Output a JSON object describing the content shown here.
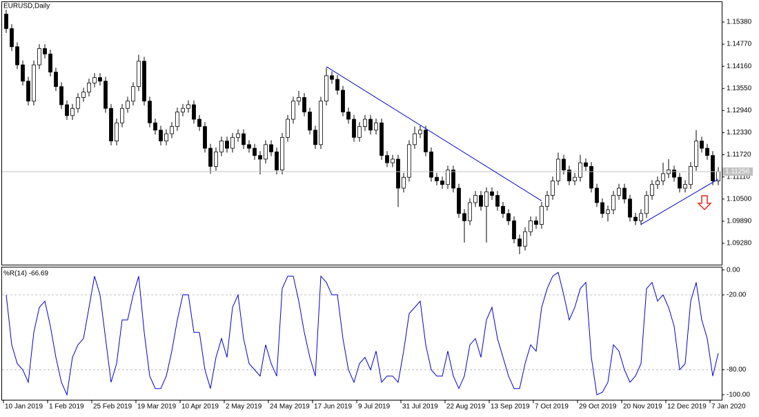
{
  "chart_data": [
    {
      "type": "candlestick",
      "title": "EURUSD,Daily",
      "color_up": "#ffffff",
      "color_down": "#000000",
      "ohlc": [
        [
          1.156,
          1.1572,
          1.1508,
          1.152
        ],
        [
          1.152,
          1.1532,
          1.1458,
          1.147
        ],
        [
          1.147,
          1.1482,
          1.1408,
          1.142
        ],
        [
          1.142,
          1.1432,
          1.1363,
          1.1375
        ],
        [
          1.1375,
          1.1387,
          1.1308,
          1.132
        ],
        [
          1.132,
          1.1432,
          1.1308,
          1.142
        ],
        [
          1.142,
          1.1477,
          1.1408,
          1.1465
        ],
        [
          1.1465,
          1.1477,
          1.1438,
          1.145
        ],
        [
          1.145,
          1.1462,
          1.1388,
          1.14
        ],
        [
          1.14,
          1.1412,
          1.1348,
          1.136
        ],
        [
          1.136,
          1.1372,
          1.1298,
          1.131
        ],
        [
          1.131,
          1.1322,
          1.1268,
          1.128
        ],
        [
          1.128,
          1.1312,
          1.1268,
          1.13
        ],
        [
          1.13,
          1.1342,
          1.1288,
          1.133
        ],
        [
          1.133,
          1.1357,
          1.1318,
          1.1345
        ],
        [
          1.1345,
          1.1382,
          1.1333,
          1.137
        ],
        [
          1.137,
          1.1397,
          1.1358,
          1.1385
        ],
        [
          1.1385,
          1.1397,
          1.1363,
          1.1375
        ],
        [
          1.1375,
          1.1387,
          1.1288,
          1.13
        ],
        [
          1.13,
          1.1312,
          1.1198,
          1.121
        ],
        [
          1.121,
          1.1272,
          1.1198,
          1.126
        ],
        [
          1.126,
          1.1312,
          1.1248,
          1.13
        ],
        [
          1.13,
          1.1332,
          1.1288,
          1.132
        ],
        [
          1.132,
          1.1372,
          1.1308,
          1.136
        ],
        [
          1.136,
          1.1448,
          1.1348,
          1.143
        ],
        [
          1.143,
          1.1442,
          1.1308,
          1.132
        ],
        [
          1.132,
          1.1332,
          1.1248,
          1.126
        ],
        [
          1.126,
          1.1272,
          1.1228,
          1.124
        ],
        [
          1.124,
          1.1252,
          1.1198,
          1.121
        ],
        [
          1.121,
          1.1242,
          1.1198,
          1.123
        ],
        [
          1.123,
          1.1262,
          1.1218,
          1.125
        ],
        [
          1.125,
          1.1302,
          1.1238,
          1.129
        ],
        [
          1.129,
          1.1312,
          1.1278,
          1.13
        ],
        [
          1.13,
          1.1322,
          1.1288,
          1.131
        ],
        [
          1.131,
          1.1322,
          1.1258,
          1.127
        ],
        [
          1.127,
          1.1282,
          1.1238,
          1.125
        ],
        [
          1.125,
          1.1262,
          1.1178,
          1.119
        ],
        [
          1.119,
          1.1202,
          1.112,
          1.114
        ],
        [
          1.114,
          1.1192,
          1.1128,
          1.118
        ],
        [
          1.118,
          1.1222,
          1.1168,
          1.121
        ],
        [
          1.121,
          1.1222,
          1.1178,
          1.119
        ],
        [
          1.119,
          1.1232,
          1.1178,
          1.122
        ],
        [
          1.122,
          1.1242,
          1.1208,
          1.123
        ],
        [
          1.123,
          1.1242,
          1.1188,
          1.12
        ],
        [
          1.12,
          1.1212,
          1.1178,
          1.119
        ],
        [
          1.119,
          1.1202,
          1.1158,
          1.117
        ],
        [
          1.117,
          1.1182,
          1.1118,
          1.116
        ],
        [
          1.116,
          1.1212,
          1.1148,
          1.12
        ],
        [
          1.12,
          1.1212,
          1.1168,
          1.118
        ],
        [
          1.118,
          1.1192,
          1.1118,
          1.113
        ],
        [
          1.113,
          1.1232,
          1.1118,
          1.122
        ],
        [
          1.122,
          1.1282,
          1.1208,
          1.127
        ],
        [
          1.127,
          1.1332,
          1.1258,
          1.132
        ],
        [
          1.132,
          1.1348,
          1.1308,
          1.133
        ],
        [
          1.133,
          1.1342,
          1.1278,
          1.129
        ],
        [
          1.129,
          1.1302,
          1.1228,
          1.124
        ],
        [
          1.124,
          1.1252,
          1.1188,
          1.12
        ],
        [
          1.12,
          1.1332,
          1.1188,
          1.132
        ],
        [
          1.132,
          1.1412,
          1.1308,
          1.139
        ],
        [
          1.139,
          1.1402,
          1.1368,
          1.138
        ],
        [
          1.138,
          1.1392,
          1.1338,
          1.135
        ],
        [
          1.135,
          1.1362,
          1.1278,
          1.129
        ],
        [
          1.129,
          1.1302,
          1.1258,
          1.127
        ],
        [
          1.127,
          1.1282,
          1.1208,
          1.122
        ],
        [
          1.122,
          1.1262,
          1.1208,
          1.125
        ],
        [
          1.125,
          1.1282,
          1.1238,
          1.127
        ],
        [
          1.127,
          1.1282,
          1.1228,
          1.124
        ],
        [
          1.124,
          1.1272,
          1.1228,
          1.126
        ],
        [
          1.126,
          1.1272,
          1.1158,
          1.117
        ],
        [
          1.117,
          1.1182,
          1.1138,
          1.115
        ],
        [
          1.115,
          1.1172,
          1.1138,
          1.116
        ],
        [
          1.116,
          1.1172,
          1.1028,
          1.108
        ],
        [
          1.108,
          1.1122,
          1.1068,
          1.111
        ],
        [
          1.111,
          1.1212,
          1.1098,
          1.12
        ],
        [
          1.12,
          1.125,
          1.1188,
          1.123
        ],
        [
          1.123,
          1.1252,
          1.1218,
          1.124
        ],
        [
          1.124,
          1.1252,
          1.1168,
          1.118
        ],
        [
          1.118,
          1.1192,
          1.1098,
          1.111
        ],
        [
          1.111,
          1.1122,
          1.1088,
          1.11
        ],
        [
          1.11,
          1.1112,
          1.1078,
          1.109
        ],
        [
          1.109,
          1.1142,
          1.1078,
          1.113
        ],
        [
          1.113,
          1.1142,
          1.1068,
          1.108
        ],
        [
          1.108,
          1.1092,
          1.0998,
          1.101
        ],
        [
          1.101,
          1.1022,
          1.093,
          1.099
        ],
        [
          1.099,
          1.1052,
          1.0978,
          1.104
        ],
        [
          1.104,
          1.1072,
          1.1028,
          1.106
        ],
        [
          1.106,
          1.1072,
          1.1018,
          1.103
        ],
        [
          1.103,
          1.1082,
          1.093,
          1.107
        ],
        [
          1.107,
          1.1082,
          1.1048,
          1.106
        ],
        [
          1.106,
          1.1072,
          1.1018,
          1.103
        ],
        [
          1.103,
          1.1042,
          1.0998,
          1.101
        ],
        [
          1.101,
          1.1022,
          1.0978,
          1.099
        ],
        [
          1.099,
          1.1002,
          1.0928,
          1.094
        ],
        [
          1.094,
          1.0952,
          1.0898,
          1.092
        ],
        [
          1.092,
          1.0972,
          1.0908,
          1.096
        ],
        [
          1.096,
          1.1002,
          1.0948,
          1.099
        ],
        [
          1.099,
          1.1002,
          1.0968,
          1.098
        ],
        [
          1.098,
          1.1042,
          1.0968,
          1.103
        ],
        [
          1.103,
          1.1072,
          1.1018,
          1.106
        ],
        [
          1.106,
          1.1112,
          1.1048,
          1.11
        ],
        [
          1.11,
          1.1178,
          1.1088,
          1.116
        ],
        [
          1.116,
          1.1172,
          1.1118,
          1.113
        ],
        [
          1.113,
          1.1142,
          1.1088,
          1.11
        ],
        [
          1.11,
          1.1122,
          1.1088,
          1.111
        ],
        [
          1.111,
          1.1172,
          1.1098,
          1.115
        ],
        [
          1.115,
          1.1162,
          1.1128,
          1.114
        ],
        [
          1.114,
          1.1152,
          1.1068,
          1.108
        ],
        [
          1.108,
          1.1092,
          1.1028,
          1.104
        ],
        [
          1.104,
          1.1052,
          1.0998,
          1.101
        ],
        [
          1.101,
          1.1032,
          1.0988,
          1.102
        ],
        [
          1.102,
          1.1072,
          1.1008,
          1.106
        ],
        [
          1.106,
          1.1092,
          1.1048,
          1.108
        ],
        [
          1.108,
          1.1092,
          1.1038,
          1.105
        ],
        [
          1.105,
          1.1062,
          1.0988,
          1.1
        ],
        [
          1.1,
          1.1012,
          1.0978,
          1.099
        ],
        [
          1.099,
          1.1022,
          1.0978,
          1.101
        ],
        [
          1.101,
          1.1072,
          1.0998,
          1.106
        ],
        [
          1.106,
          1.1102,
          1.1048,
          1.109
        ],
        [
          1.109,
          1.1112,
          1.1078,
          1.11
        ],
        [
          1.11,
          1.115,
          1.1088,
          1.112
        ],
        [
          1.112,
          1.116,
          1.1108,
          1.113
        ],
        [
          1.113,
          1.1142,
          1.1098,
          1.111
        ],
        [
          1.111,
          1.1122,
          1.1068,
          1.108
        ],
        [
          1.108,
          1.1102,
          1.1068,
          1.109
        ],
        [
          1.109,
          1.1152,
          1.1078,
          1.114
        ],
        [
          1.114,
          1.124,
          1.1128,
          1.121
        ],
        [
          1.121,
          1.1222,
          1.1178,
          1.119
        ],
        [
          1.119,
          1.1202,
          1.1158,
          1.117
        ],
        [
          1.117,
          1.1182,
          1.1088,
          1.11
        ],
        [
          1.11,
          1.1138,
          1.1088,
          1.1126
        ]
      ],
      "ylim": [
        1.0869,
        1.1595
      ],
      "yticks": [
        {
          "value": 1.1538,
          "label": "1.15380"
        },
        {
          "value": 1.1477,
          "label": "1.14770"
        },
        {
          "value": 1.1416,
          "label": "1.14160"
        },
        {
          "value": 1.1355,
          "label": "1.13550"
        },
        {
          "value": 1.1294,
          "label": "1.12940"
        },
        {
          "value": 1.1233,
          "label": "1.12330"
        },
        {
          "value": 1.1172,
          "label": "1.11720"
        },
        {
          "value": 1.1111,
          "label": "1.11110"
        },
        {
          "value": 1.105,
          "label": "1.10500"
        },
        {
          "value": 1.0989,
          "label": "1.09890"
        },
        {
          "value": 1.0928,
          "label": "1.09280"
        }
      ],
      "xticks": [
        {
          "value": 0,
          "label": "10 Jan 2019"
        },
        {
          "value": 8,
          "label": "1 Feb 2019"
        },
        {
          "value": 16,
          "label": "25 Feb 2019"
        },
        {
          "value": 24,
          "label": "19 Mar 2019"
        },
        {
          "value": 32,
          "label": "10 Apr 2019"
        },
        {
          "value": 40,
          "label": "2 May 2019"
        },
        {
          "value": 48,
          "label": "24 May 2019"
        },
        {
          "value": 56,
          "label": "17 Jun 2019"
        },
        {
          "value": 64,
          "label": "9 Jul 2019"
        },
        {
          "value": 72,
          "label": "31 Jul 2019"
        },
        {
          "value": 80,
          "label": "22 Aug 2019"
        },
        {
          "value": 88,
          "label": "13 Sep 2019"
        },
        {
          "value": 96,
          "label": "7 Oct 2019"
        },
        {
          "value": 104,
          "label": "29 Oct 2019"
        },
        {
          "value": 112,
          "label": "20 Nov 2019"
        },
        {
          "value": 120,
          "label": "12 Dec 2019"
        },
        {
          "value": 128,
          "label": "7 Jan 2020"
        }
      ],
      "current_price": 1.11256,
      "trendline_color": "#0000cc",
      "trendlines": [
        {
          "x": [
            58,
            97
          ],
          "y": [
            1.1415,
            1.1045
          ]
        },
        {
          "x": [
            115,
            129
          ],
          "y": [
            1.098,
            1.1105
          ]
        }
      ]
    },
    {
      "type": "line",
      "title": "%R(14) -66.69",
      "color": "#0000cc",
      "values": [
        -20,
        -60,
        -75,
        -80,
        -90,
        -50,
        -30,
        -25,
        -45,
        -70,
        -90,
        -100,
        -70,
        -60,
        -55,
        -30,
        -5,
        -20,
        -55,
        -90,
        -75,
        -40,
        -40,
        -20,
        -5,
        -50,
        -85,
        -95,
        -95,
        -85,
        -65,
        -40,
        -20,
        -20,
        -50,
        -50,
        -80,
        -95,
        -70,
        -55,
        -70,
        -30,
        -20,
        -55,
        -75,
        -80,
        -85,
        -60,
        -75,
        -85,
        -15,
        -5,
        -5,
        -25,
        -50,
        -70,
        -85,
        -5,
        -10,
        -20,
        -20,
        -55,
        -80,
        -90,
        -75,
        -70,
        -80,
        -65,
        -90,
        -85,
        -85,
        -90,
        -65,
        -35,
        -30,
        -25,
        -60,
        -80,
        -85,
        -85,
        -65,
        -85,
        -95,
        -85,
        -60,
        -55,
        -70,
        -40,
        -30,
        -55,
        -70,
        -85,
        -95,
        -95,
        -75,
        -60,
        -65,
        -30,
        -15,
        -5,
        -2,
        -20,
        -40,
        -30,
        -15,
        -10,
        -70,
        -100,
        -98,
        -90,
        -60,
        -65,
        -80,
        -90,
        -85,
        -75,
        -15,
        -10,
        -25,
        -20,
        -30,
        -45,
        -80,
        -75,
        -25,
        -10,
        -40,
        -55,
        -85,
        -66.69
      ],
      "ylim": [
        -104,
        2
      ],
      "yticks": [
        {
          "value": 0,
          "label": "0.00"
        },
        {
          "value": -20,
          "label": "-20.00"
        },
        {
          "value": -80,
          "label": "-80.00"
        },
        {
          "value": -100,
          "label": "-100.00"
        }
      ],
      "levels": [
        -20,
        -80
      ]
    }
  ]
}
